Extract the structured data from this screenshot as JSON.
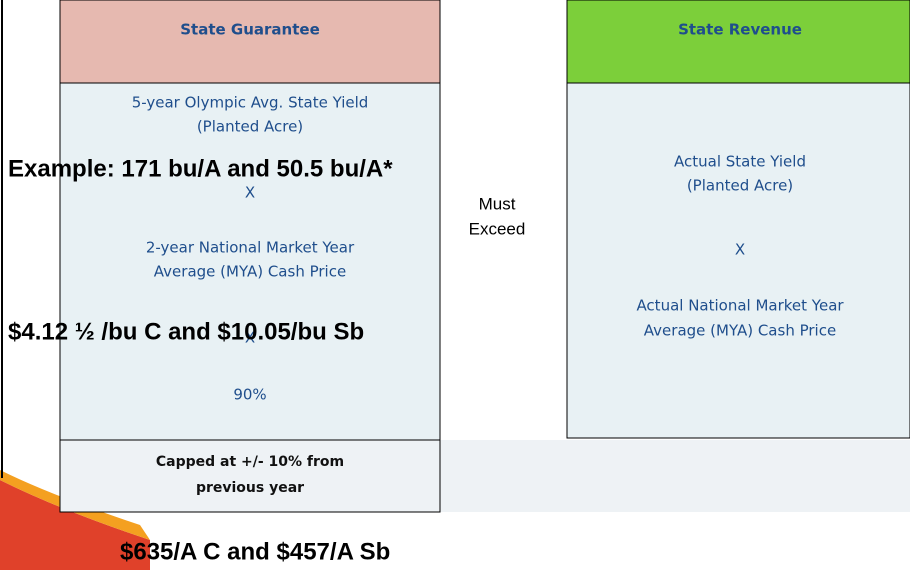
{
  "left_panel": {
    "header": "State Guarantee",
    "body": [
      "5-year Olympic Avg. State Yield",
      "(Planted Acre)",
      "X",
      "2-year National Market Year",
      "Average (MYA) Cash Price",
      "X",
      "90%"
    ],
    "footer": [
      "Capped at +/- 10% from",
      "previous year"
    ]
  },
  "middle": [
    "Must",
    "Exceed"
  ],
  "right_panel": {
    "header": "State Revenue",
    "body": [
      "Actual State Yield",
      "(Planted Acre)",
      "X",
      "Actual National Market Year",
      "Average (MYA) Cash Price"
    ]
  },
  "overlays": [
    "Example: 171 bu/A and 50.5 bu/A*",
    "$4.12 ½ /bu C and $10.05/bu  Sb",
    "$635/A C and $457/A  Sb"
  ]
}
